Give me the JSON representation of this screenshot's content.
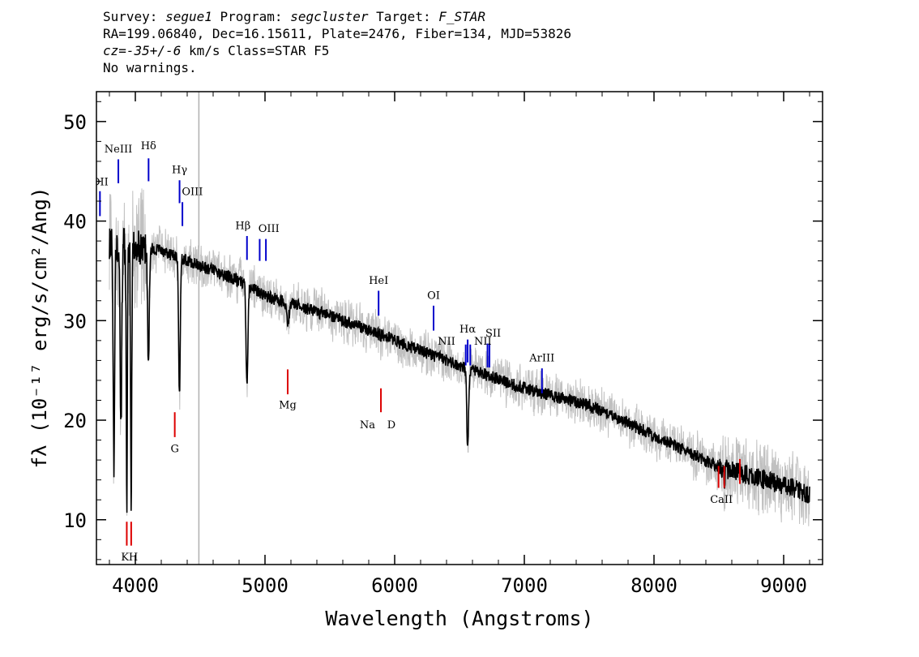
{
  "header": {
    "line1": {
      "k1": "Survey: ",
      "v1": "segue1",
      "k2": " Program: ",
      "v2": "segcluster",
      "k3": " Target: ",
      "v3": "F_STAR"
    },
    "line2": "RA=199.06840, Dec=16.15611, Plate=2476, Fiber=134, MJD=53826",
    "line3": {
      "v1": "cz=-35+/-6",
      "rest": " km/s Class=STAR F5"
    },
    "line4": "No warnings."
  },
  "chart_data": {
    "type": "line",
    "xlabel": "Wavelength (Angstroms)",
    "ylabel": "fλ (10⁻¹⁷ erg/s/cm²/Ang)",
    "xlim": [
      3700,
      9300
    ],
    "ylim": [
      5.5,
      53
    ],
    "xticks": [
      4000,
      5000,
      6000,
      7000,
      8000,
      9000
    ],
    "yticks": [
      10,
      20,
      30,
      40,
      50
    ],
    "xtick_labels": [
      "4000",
      "5000",
      "6000",
      "7000",
      "8000",
      "9000"
    ],
    "ytick_labels": [
      "10",
      "20",
      "30",
      "40",
      "50"
    ],
    "marker_line_x": 4490,
    "spectrum_range": [
      3800,
      9200
    ],
    "continuum": [
      [
        3800,
        38
      ],
      [
        3900,
        37.5
      ],
      [
        4000,
        37.5
      ],
      [
        4200,
        37
      ],
      [
        4500,
        35.5
      ],
      [
        4800,
        34
      ],
      [
        5000,
        32.5
      ],
      [
        5500,
        30.5
      ],
      [
        6000,
        28
      ],
      [
        6500,
        25.5
      ],
      [
        7000,
        23.2
      ],
      [
        7500,
        21.5
      ],
      [
        8000,
        18.5
      ],
      [
        8500,
        15.3
      ],
      [
        9000,
        13.5
      ],
      [
        9200,
        12.5
      ]
    ],
    "absorption_features": [
      {
        "x": 3835,
        "depth": 22,
        "width": 8
      },
      {
        "x": 3889,
        "depth": 18,
        "width": 9
      },
      {
        "x": 3934,
        "depth": 26,
        "width": 6
      },
      {
        "x": 3968,
        "depth": 27,
        "width": 6
      },
      {
        "x": 4101,
        "depth": 12,
        "width": 9
      },
      {
        "x": 4340,
        "depth": 14,
        "width": 9
      },
      {
        "x": 4861,
        "depth": 10,
        "width": 10
      },
      {
        "x": 5175,
        "depth": 2,
        "width": 15
      },
      {
        "x": 6563,
        "depth": 8,
        "width": 10
      },
      {
        "x": 8542,
        "depth": 2,
        "width": 6
      }
    ],
    "emission_lines": [
      {
        "label": "OII",
        "x": 3727,
        "y_bottom": 40.5,
        "y_top": 43
      },
      {
        "label": "NeIII",
        "x": 3869,
        "y_bottom": 43.8,
        "y_top": 46.2
      },
      {
        "label": "Hδ",
        "x": 4102,
        "y_bottom": 44,
        "y_top": 46.3
      },
      {
        "label": "Hγ",
        "x": 4341,
        "y_bottom": 41.8,
        "y_top": 44.1
      },
      {
        "label": "OIII",
        "x": 4363,
        "y_bottom": 39.5,
        "y_top": 41.9
      },
      {
        "label": "Hβ",
        "x": 4861,
        "y_bottom": 36.1,
        "y_top": 38.5
      },
      {
        "label": "OIII",
        "x": 4959,
        "y_bottom": 36,
        "y_top": 38.2
      },
      {
        "label": "OIII",
        "x": 5007,
        "y_bottom": 36,
        "y_top": 38.2
      },
      {
        "label": "HeI",
        "x": 5876,
        "y_bottom": 30.5,
        "y_top": 33
      },
      {
        "label": "OI",
        "x": 6300,
        "y_bottom": 29,
        "y_top": 31.5
      },
      {
        "label": "NII",
        "x": 6548,
        "y_bottom": 25.5,
        "y_top": 27.6
      },
      {
        "label": "Hα",
        "x": 6563,
        "y_bottom": 25.8,
        "y_top": 28.1
      },
      {
        "label": "NII",
        "x": 6583,
        "y_bottom": 25.5,
        "y_top": 27.6
      },
      {
        "label": "SII",
        "x": 6716,
        "y_bottom": 25.3,
        "y_top": 27.7
      },
      {
        "label": "SII",
        "x": 6731,
        "y_bottom": 25.3,
        "y_top": 27.7
      },
      {
        "label": "ArIII",
        "x": 7136,
        "y_bottom": 22.7,
        "y_top": 25.2
      }
    ],
    "emission_label_groups": [
      {
        "text": "OII",
        "x": 3727,
        "y": 43.6,
        "anchor": "middle"
      },
      {
        "text": "NeIII",
        "x": 3869,
        "y": 46.9,
        "anchor": "middle"
      },
      {
        "text": "Hδ",
        "x": 4102,
        "y": 47.2,
        "anchor": "middle"
      },
      {
        "text": "Hγ",
        "x": 4341,
        "y": 44.8,
        "anchor": "middle"
      },
      {
        "text": "OIII",
        "x": 4440,
        "y": 42.6,
        "anchor": "middle"
      },
      {
        "text": "Hβ",
        "x": 4830,
        "y": 39.2,
        "anchor": "middle"
      },
      {
        "text": "OIII",
        "x": 5030,
        "y": 38.9,
        "anchor": "middle"
      },
      {
        "text": "HeI",
        "x": 5876,
        "y": 33.7,
        "anchor": "middle"
      },
      {
        "text": "OI",
        "x": 6300,
        "y": 32.2,
        "anchor": "middle"
      },
      {
        "text": "NII",
        "x": 6400,
        "y": 27.6,
        "anchor": "middle"
      },
      {
        "text": "Hα",
        "x": 6563,
        "y": 28.8,
        "anchor": "middle"
      },
      {
        "text": "NII",
        "x": 6680,
        "y": 27.6,
        "anchor": "middle"
      },
      {
        "text": "SII",
        "x": 6760,
        "y": 28.4,
        "anchor": "middle"
      },
      {
        "text": "ArIII",
        "x": 7136,
        "y": 25.9,
        "anchor": "middle"
      }
    ],
    "absorption_lines": [
      {
        "label": "K",
        "x": 3934,
        "y_bottom": 7.4,
        "y_top": 9.8
      },
      {
        "label": "H",
        "x": 3968,
        "y_bottom": 7.4,
        "y_top": 9.8
      },
      {
        "label": "G",
        "x": 4304,
        "y_bottom": 18.3,
        "y_top": 20.8
      },
      {
        "label": "Mg",
        "x": 5175,
        "y_bottom": 22.6,
        "y_top": 25.1
      },
      {
        "label": "Na",
        "x": 5894,
        "y_bottom": 20.8,
        "y_top": 23.2
      },
      {
        "label": "CaII",
        "x": 8498,
        "y_bottom": 13.2,
        "y_top": 15.4
      },
      {
        "label": "CaII",
        "x": 8542,
        "y_bottom": 13.2,
        "y_top": 15.4
      },
      {
        "label": "CaII",
        "x": 8662,
        "y_bottom": 13.6,
        "y_top": 16.1
      }
    ],
    "absorption_label_groups": [
      {
        "text": "K",
        "x": 3920,
        "y": 5.9,
        "anchor": "middle"
      },
      {
        "text": "H",
        "x": 3985,
        "y": 5.9,
        "anchor": "middle"
      },
      {
        "text": "G",
        "x": 4304,
        "y": 16.8,
        "anchor": "middle"
      },
      {
        "text": "Mg",
        "x": 5175,
        "y": 21.2,
        "anchor": "middle"
      },
      {
        "text": "Na",
        "x": 5790,
        "y": 19.2,
        "anchor": "middle"
      },
      {
        "text": "D",
        "x": 5975,
        "y": 19.2,
        "anchor": "middle"
      },
      {
        "text": "CaII",
        "x": 8520,
        "y": 11.7,
        "anchor": "middle"
      }
    ],
    "colors": {
      "spectrum": "#000000",
      "noise": "#c0c0c0",
      "emission": "#0000cc",
      "absorption": "#dd0000",
      "marker": "#b0b0b0"
    }
  }
}
